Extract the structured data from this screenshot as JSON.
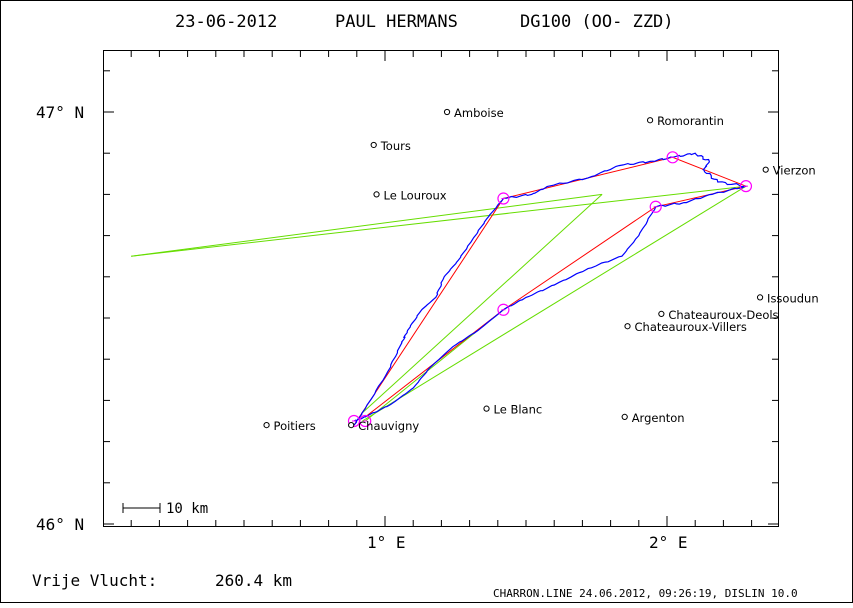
{
  "header": {
    "date": "23-06-2012",
    "pilot": "PAUL HERMANS",
    "glider": "DG100 (OO- ZZD)"
  },
  "axes": {
    "y_labels": [
      {
        "text": "47° N",
        "lat": 47.0
      },
      {
        "text": "46° N",
        "lat": 46.0
      }
    ],
    "x_labels": [
      {
        "text": "1° E",
        "lon": 1.0
      },
      {
        "text": "2° E",
        "lon": 2.0
      }
    ],
    "lon_range": [
      0.0,
      2.4
    ],
    "lat_range": [
      45.98,
      47.15
    ]
  },
  "places": [
    {
      "name": "Amboise",
      "lon": 1.22,
      "lat": 47.0
    },
    {
      "name": "Romorantin",
      "lon": 1.94,
      "lat": 46.98
    },
    {
      "name": "Tours",
      "lon": 0.96,
      "lat": 46.92
    },
    {
      "name": "Vierzon",
      "lon": 2.35,
      "lat": 46.86
    },
    {
      "name": "Le Louroux",
      "lon": 0.97,
      "lat": 46.8
    },
    {
      "name": "Issoudun",
      "lon": 2.33,
      "lat": 46.55
    },
    {
      "name": "Chateauroux-Deols",
      "lon": 1.98,
      "lat": 46.51
    },
    {
      "name": "Chateauroux-Villers",
      "lon": 1.86,
      "lat": 46.48
    },
    {
      "name": "Le Blanc",
      "lon": 1.36,
      "lat": 46.28
    },
    {
      "name": "Poitiers",
      "lon": 0.58,
      "lat": 46.24
    },
    {
      "name": "Argenton",
      "lon": 1.85,
      "lat": 46.26
    },
    {
      "name": "Chauvigny",
      "lon": 0.88,
      "lat": 46.24
    }
  ],
  "turnpoints": [
    {
      "lon": 0.89,
      "lat": 46.25
    },
    {
      "lon": 1.42,
      "lat": 46.79
    },
    {
      "lon": 2.02,
      "lat": 46.89
    },
    {
      "lon": 2.28,
      "lat": 46.82
    },
    {
      "lon": 1.96,
      "lat": 46.77
    },
    {
      "lon": 1.42,
      "lat": 46.52
    },
    {
      "lon": 0.93,
      "lat": 46.25
    }
  ],
  "route_line": [
    {
      "lon": 0.89,
      "lat": 46.24
    },
    {
      "lon": 1.42,
      "lat": 46.79
    },
    {
      "lon": 2.02,
      "lat": 46.89
    },
    {
      "lon": 2.28,
      "lat": 46.82
    },
    {
      "lon": 1.96,
      "lat": 46.77
    },
    {
      "lon": 1.42,
      "lat": 46.52
    },
    {
      "lon": 0.93,
      "lat": 46.26
    }
  ],
  "sector_lines": [
    [
      {
        "lon": 0.1,
        "lat": 46.65
      },
      {
        "lon": 1.77,
        "lat": 46.8
      },
      {
        "lon": 0.1,
        "lat": 46.65
      }
    ],
    [
      {
        "lon": 1.77,
        "lat": 46.8
      },
      {
        "lon": 0.92,
        "lat": 46.27
      }
    ],
    [
      {
        "lon": 2.28,
        "lat": 46.82
      },
      {
        "lon": 0.1,
        "lat": 46.65
      }
    ],
    [
      {
        "lon": 2.28,
        "lat": 46.82
      },
      {
        "lon": 0.92,
        "lat": 46.25
      }
    ],
    [
      {
        "lon": 0.93,
        "lat": 46.25
      },
      {
        "lon": 1.42,
        "lat": 46.52
      }
    ]
  ],
  "flight_track": [
    {
      "lon": 0.89,
      "lat": 46.24
    },
    {
      "lon": 0.93,
      "lat": 46.28
    },
    {
      "lon": 1.01,
      "lat": 46.37
    },
    {
      "lon": 1.06,
      "lat": 46.44
    },
    {
      "lon": 1.08,
      "lat": 46.47
    },
    {
      "lon": 1.13,
      "lat": 46.52
    },
    {
      "lon": 1.18,
      "lat": 46.55
    },
    {
      "lon": 1.21,
      "lat": 46.6
    },
    {
      "lon": 1.26,
      "lat": 46.64
    },
    {
      "lon": 1.31,
      "lat": 46.69
    },
    {
      "lon": 1.36,
      "lat": 46.74
    },
    {
      "lon": 1.42,
      "lat": 46.79
    },
    {
      "lon": 1.52,
      "lat": 46.8
    },
    {
      "lon": 1.58,
      "lat": 46.82
    },
    {
      "lon": 1.72,
      "lat": 46.84
    },
    {
      "lon": 1.83,
      "lat": 46.87
    },
    {
      "lon": 1.94,
      "lat": 46.88
    },
    {
      "lon": 2.02,
      "lat": 46.89
    },
    {
      "lon": 2.1,
      "lat": 46.9
    },
    {
      "lon": 2.15,
      "lat": 46.88
    },
    {
      "lon": 2.13,
      "lat": 46.86
    },
    {
      "lon": 2.18,
      "lat": 46.83
    },
    {
      "lon": 2.28,
      "lat": 46.82
    },
    {
      "lon": 2.16,
      "lat": 46.8
    },
    {
      "lon": 2.06,
      "lat": 46.78
    },
    {
      "lon": 1.96,
      "lat": 46.77
    },
    {
      "lon": 1.9,
      "lat": 46.7
    },
    {
      "lon": 1.84,
      "lat": 46.65
    },
    {
      "lon": 1.72,
      "lat": 46.62
    },
    {
      "lon": 1.6,
      "lat": 46.58
    },
    {
      "lon": 1.5,
      "lat": 46.55
    },
    {
      "lon": 1.42,
      "lat": 46.52
    },
    {
      "lon": 1.33,
      "lat": 46.47
    },
    {
      "lon": 1.24,
      "lat": 46.43
    },
    {
      "lon": 1.16,
      "lat": 46.38
    },
    {
      "lon": 1.1,
      "lat": 46.33
    },
    {
      "lon": 1.02,
      "lat": 46.29
    },
    {
      "lon": 0.93,
      "lat": 46.26
    },
    {
      "lon": 0.89,
      "lat": 46.25
    }
  ],
  "scale_bar": {
    "label": "10 km",
    "km": 10
  },
  "footer": {
    "distance_label": "Vrije Vlucht:",
    "distance_value": "260.4 km",
    "stamp": "CHARRON.LINE 24.06.2012, 09:26:19, DISLIN 10.0"
  },
  "colors": {
    "track": "#0000ff",
    "route": "#ff0000",
    "sector": "#66dd00",
    "turnpoint": "#ff00ff",
    "frame": "#000000"
  }
}
